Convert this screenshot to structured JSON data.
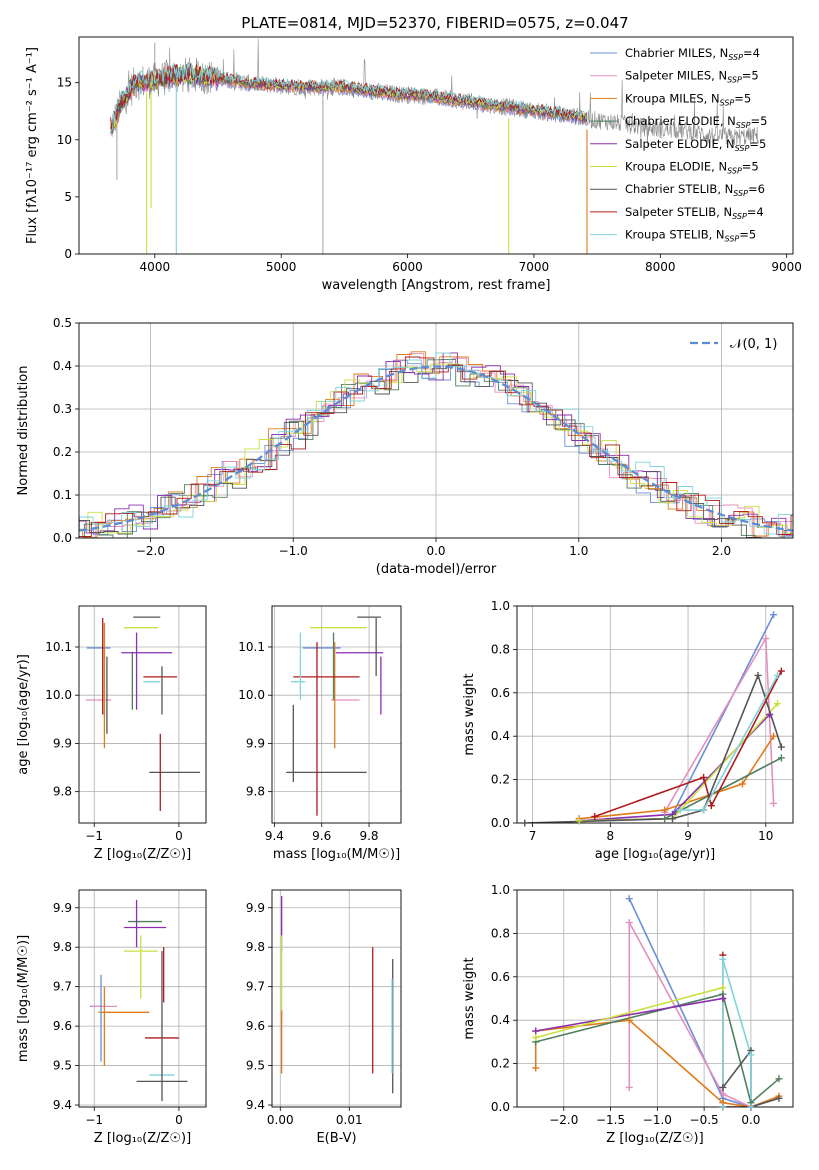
{
  "colors": {
    "chabrier_miles": "#6a8fd6",
    "salpeter_miles": "#e58fbf",
    "kroupa_miles": "#e07b1a",
    "chabrier_elodie": "#4e7f5e",
    "salpeter_elodie": "#8a2fb0",
    "kroupa_elodie": "#c8e040",
    "chabrier_stelib": "#555555",
    "salpeter_stelib": "#b01a1a",
    "kroupa_stelib": "#7fd4dc",
    "gaussian": "#5b8bd6",
    "grid": "#b0b0b0"
  },
  "chart_data": [
    {
      "id": "spectrum",
      "type": "line",
      "title": "PLATE=0814, MJD=52370, FIBERID=0575, z=0.047",
      "xlabel": "wavelength [Angstrom, rest frame]",
      "ylabel": "Flux [fλ10⁻¹⁷ erg cm⁻² s⁻¹ A⁻¹]",
      "xlim": [
        3400,
        9050
      ],
      "ylim": [
        0,
        19
      ],
      "xticks": [
        4000,
        5000,
        6000,
        7000,
        8000,
        9000
      ],
      "yticks": [
        0,
        5,
        10,
        15
      ],
      "legend_position": "top-right",
      "legend": [
        {
          "name": "Chabrier MILES, N",
          "sub": "SSP",
          "suffix": "=4",
          "color_key": "chabrier_miles"
        },
        {
          "name": "Salpeter MILES, N",
          "sub": "SSP",
          "suffix": "=5",
          "color_key": "salpeter_miles"
        },
        {
          "name": "Kroupa MILES, N",
          "sub": "SSP",
          "suffix": "=5",
          "color_key": "kroupa_miles"
        },
        {
          "name": "Chabrier ELODIE, N",
          "sub": "SSP",
          "suffix": "=5",
          "color_key": "chabrier_elodie"
        },
        {
          "name": "Salpeter ELODIE, N",
          "sub": "SSP",
          "suffix": "=5",
          "color_key": "salpeter_elodie"
        },
        {
          "name": "Kroupa ELODIE, N",
          "sub": "SSP",
          "suffix": "=5",
          "color_key": "kroupa_elodie"
        },
        {
          "name": "Chabrier STELIB, N",
          "sub": "SSP",
          "suffix": "=6",
          "color_key": "chabrier_stelib"
        },
        {
          "name": "Salpeter STELIB, N",
          "sub": "SSP",
          "suffix": "=4",
          "color_key": "salpeter_stelib"
        },
        {
          "name": "Kroupa STELIB, N",
          "sub": "SSP",
          "suffix": "=5",
          "color_key": "kroupa_stelib"
        }
      ],
      "continuum": {
        "x": [
          3650,
          3750,
          3850,
          4000,
          4150,
          4300,
          4500,
          4700,
          4900,
          5100,
          5300,
          5500,
          5700,
          5900,
          6100,
          6300,
          6500,
          6700,
          6900,
          7100,
          7300,
          7420
        ],
        "y": [
          11.0,
          13.5,
          15.0,
          15.2,
          15.6,
          15.7,
          15.4,
          15.0,
          14.8,
          14.7,
          14.6,
          14.6,
          14.3,
          14.0,
          13.9,
          13.6,
          13.3,
          13.0,
          12.7,
          12.4,
          12.1,
          11.9
        ]
      },
      "observed_tail": {
        "x": [
          7420,
          7600,
          7800,
          8000,
          8200,
          8400,
          8600,
          8780
        ],
        "y": [
          11.8,
          11.6,
          11.2,
          10.9,
          10.8,
          10.4,
          10.2,
          10.4
        ]
      },
      "model_dips": [
        {
          "x": 3935,
          "y": 0.0
        },
        {
          "x": 3970,
          "y": 4.0
        },
        {
          "x": 4170,
          "y": 0.0
        },
        {
          "x": 6800,
          "y": 0.0
        },
        {
          "x": 7420,
          "y": 0.0
        }
      ],
      "observed_spikes": [
        {
          "x": 5330,
          "y": 0.0
        },
        {
          "x": 3700,
          "y": 6.5
        },
        {
          "x": 4000,
          "y": 18.5
        }
      ]
    },
    {
      "id": "residuals",
      "type": "line",
      "title": "",
      "xlabel": "(data-model)/error",
      "ylabel": "Normed distribution",
      "xlim": [
        -2.5,
        2.5
      ],
      "ylim": [
        0,
        0.5
      ],
      "xticks": [
        -2,
        -1,
        0,
        1,
        2
      ],
      "yticks": [
        0.0,
        0.1,
        0.2,
        0.3,
        0.4,
        0.5
      ],
      "legend_position": "top-right",
      "gaussian_label": "𝒩(0, 1)",
      "bin_width": 0.1,
      "series_color_keys": [
        "chabrier_miles",
        "salpeter_miles",
        "kroupa_miles",
        "chabrier_elodie",
        "salpeter_elodie",
        "kroupa_elodie",
        "chabrier_stelib",
        "salpeter_stelib",
        "kroupa_stelib"
      ]
    },
    {
      "id": "age_vs_Z",
      "type": "scatter",
      "xlabel": "Z [log₁₀(Z/Z☉)]",
      "ylabel": "age  [log₁₀(age/yr)]",
      "xlim": [
        -1.18,
        0.32
      ],
      "ylim": [
        9.735,
        10.185
      ],
      "xticks": [
        -1,
        0
      ],
      "yticks": [
        9.8,
        9.9,
        10.0,
        10.1
      ],
      "points": [
        {
          "x": -0.95,
          "y": 10.098,
          "xerr": 0.14,
          "yerr": 0.0,
          "color_key": "chabrier_miles"
        },
        {
          "x": -0.95,
          "y": 9.99,
          "xerr": 0.15,
          "yerr": 0.0,
          "color_key": "salpeter_miles"
        },
        {
          "x": -0.88,
          "y": 10.02,
          "xerr": 0.0,
          "yerr": 0.13,
          "color_key": "kroupa_miles"
        },
        {
          "x": -0.55,
          "y": 10.03,
          "xerr": 0.0,
          "yerr": 0.06,
          "color_key": "chabrier_elodie"
        },
        {
          "x": -0.38,
          "y": 10.088,
          "xerr": 0.3,
          "yerr": 0.0,
          "color_key": "salpeter_elodie"
        },
        {
          "x": -0.45,
          "y": 10.14,
          "xerr": 0.2,
          "yerr": 0.0,
          "color_key": "kroupa_elodie"
        },
        {
          "x": -0.38,
          "y": 10.162,
          "xerr": 0.16,
          "yerr": 0.0,
          "color_key": "chabrier_stelib"
        },
        {
          "x": -0.22,
          "y": 10.038,
          "xerr": 0.2,
          "yerr": 0.0,
          "color_key": "salpeter_stelib"
        },
        {
          "x": -0.32,
          "y": 10.028,
          "xerr": 0.1,
          "yerr": 0.0,
          "color_key": "kroupa_stelib"
        },
        {
          "x": -0.05,
          "y": 9.84,
          "xerr": 0.3,
          "yerr": 0.0,
          "color_key": "chabrier_stelib"
        },
        {
          "x": -0.22,
          "y": 9.84,
          "xerr": 0.0,
          "yerr": 0.08,
          "color_key": "salpeter_stelib"
        },
        {
          "x": -0.9,
          "y": 10.06,
          "xerr": 0.0,
          "yerr": 0.1,
          "color_key": "salpeter_stelib"
        },
        {
          "x": -0.85,
          "y": 10.0,
          "xerr": 0.0,
          "yerr": 0.08,
          "color_key": "chabrier_stelib"
        },
        {
          "x": -0.5,
          "y": 10.05,
          "xerr": 0.0,
          "yerr": 0.08,
          "color_key": "salpeter_elodie"
        },
        {
          "x": -0.2,
          "y": 10.01,
          "xerr": 0.0,
          "yerr": 0.05,
          "color_key": "chabrier_stelib"
        }
      ]
    },
    {
      "id": "age_vs_mass",
      "type": "scatter",
      "xlabel": "mass [log₁₀(M/M☉)]",
      "ylabel": "",
      "xlim": [
        9.39,
        9.935
      ],
      "ylim": [
        9.735,
        10.185
      ],
      "xticks": [
        9.4,
        9.6,
        9.8
      ],
      "yticks": [
        9.8,
        9.9,
        10.0,
        10.1
      ],
      "points": [
        {
          "x": 9.6,
          "y": 10.098,
          "xerr": 0.08,
          "yerr": 0.0,
          "color_key": "chabrier_miles"
        },
        {
          "x": 9.7,
          "y": 9.99,
          "xerr": 0.06,
          "yerr": 0.0,
          "color_key": "salpeter_miles"
        },
        {
          "x": 9.655,
          "y": 10.0,
          "xerr": 0.0,
          "yerr": 0.11,
          "color_key": "kroupa_miles"
        },
        {
          "x": 9.65,
          "y": 10.06,
          "xerr": 0.0,
          "yerr": 0.07,
          "color_key": "chabrier_elodie"
        },
        {
          "x": 9.76,
          "y": 10.088,
          "xerr": 0.1,
          "yerr": 0.0,
          "color_key": "salpeter_elodie"
        },
        {
          "x": 9.67,
          "y": 10.14,
          "xerr": 0.12,
          "yerr": 0.0,
          "color_key": "kroupa_elodie"
        },
        {
          "x": 9.8,
          "y": 10.162,
          "xerr": 0.05,
          "yerr": 0.0,
          "color_key": "chabrier_stelib"
        },
        {
          "x": 9.62,
          "y": 10.038,
          "xerr": 0.14,
          "yerr": 0.0,
          "color_key": "salpeter_stelib"
        },
        {
          "x": 9.5,
          "y": 10.028,
          "xerr": 0.03,
          "yerr": 0.0,
          "color_key": "kroupa_stelib"
        },
        {
          "x": 9.62,
          "y": 9.84,
          "xerr": 0.17,
          "yerr": 0.0,
          "color_key": "chabrier_stelib"
        },
        {
          "x": 9.48,
          "y": 9.9,
          "xerr": 0.0,
          "yerr": 0.08,
          "color_key": "chabrier_stelib"
        },
        {
          "x": 9.58,
          "y": 9.93,
          "xerr": 0.0,
          "yerr": 0.18,
          "color_key": "salpeter_stelib"
        },
        {
          "x": 9.51,
          "y": 10.06,
          "xerr": 0.0,
          "yerr": 0.07,
          "color_key": "kroupa_stelib"
        },
        {
          "x": 9.85,
          "y": 10.02,
          "xerr": 0.0,
          "yerr": 0.06,
          "color_key": "salpeter_elodie"
        },
        {
          "x": 9.83,
          "y": 10.1,
          "xerr": 0.0,
          "yerr": 0.06,
          "color_key": "chabrier_stelib"
        }
      ]
    },
    {
      "id": "mass_weight_vs_age",
      "type": "line",
      "xlabel": "age  [log₁₀(age/yr)]",
      "ylabel": "mass weight",
      "xlim": [
        6.8,
        10.35
      ],
      "ylim": [
        0.0,
        1.0
      ],
      "xticks": [
        7,
        8,
        9,
        10
      ],
      "yticks": [
        0.0,
        0.2,
        0.4,
        0.6,
        0.8,
        1.0
      ],
      "series": [
        {
          "color_key": "chabrier_miles",
          "x": [
            8.8,
            10.1
          ],
          "y": [
            0.04,
            0.96
          ]
        },
        {
          "color_key": "salpeter_miles",
          "x": [
            8.7,
            10.0,
            10.1
          ],
          "y": [
            0.05,
            0.85,
            0.09
          ]
        },
        {
          "color_key": "kroupa_miles",
          "x": [
            7.6,
            8.7,
            9.7,
            10.1
          ],
          "y": [
            0.02,
            0.06,
            0.18,
            0.4
          ]
        },
        {
          "color_key": "chabrier_elodie",
          "x": [
            7.6,
            8.7,
            10.2
          ],
          "y": [
            0.01,
            0.02,
            0.3
          ]
        },
        {
          "color_key": "salpeter_elodie",
          "x": [
            7.6,
            8.8,
            10.05
          ],
          "y": [
            0.01,
            0.04,
            0.5
          ]
        },
        {
          "color_key": "kroupa_elodie",
          "x": [
            7.6,
            8.8,
            10.15
          ],
          "y": [
            0.01,
            0.02,
            0.55
          ]
        },
        {
          "color_key": "chabrier_stelib",
          "x": [
            6.9,
            8.8,
            9.2,
            9.9,
            10.2
          ],
          "y": [
            0.0,
            0.02,
            0.06,
            0.68,
            0.35
          ]
        },
        {
          "color_key": "salpeter_stelib",
          "x": [
            7.8,
            9.2,
            9.3,
            10.2
          ],
          "y": [
            0.03,
            0.21,
            0.08,
            0.7
          ]
        },
        {
          "color_key": "kroupa_stelib",
          "x": [
            8.9,
            9.2,
            10.15
          ],
          "y": [
            0.06,
            0.06,
            0.68
          ]
        }
      ]
    },
    {
      "id": "mass_vs_Z",
      "type": "scatter",
      "xlabel": "Z [log₁₀(Z/Z☉)]",
      "ylabel": "mass [log₁₀(M/M☉)]",
      "xlim": [
        -1.18,
        0.32
      ],
      "ylim": [
        9.395,
        9.945
      ],
      "xticks": [
        -1,
        0
      ],
      "yticks": [
        9.4,
        9.5,
        9.6,
        9.7,
        9.8,
        9.9
      ],
      "points": [
        {
          "x": -0.95,
          "y": 9.65,
          "xerr": 0.1,
          "yerr": 0.0,
          "color_key": "chabrier_miles"
        },
        {
          "x": -0.88,
          "y": 9.65,
          "xerr": 0.15,
          "yerr": 0.0,
          "color_key": "salpeter_miles"
        },
        {
          "x": -0.65,
          "y": 9.635,
          "xerr": 0.3,
          "yerr": 0.0,
          "color_key": "kroupa_miles"
        },
        {
          "x": -0.4,
          "y": 9.865,
          "xerr": 0.2,
          "yerr": 0.0,
          "color_key": "chabrier_elodie"
        },
        {
          "x": -0.4,
          "y": 9.85,
          "xerr": 0.25,
          "yerr": 0.0,
          "color_key": "salpeter_elodie"
        },
        {
          "x": -0.45,
          "y": 9.79,
          "xerr": 0.2,
          "yerr": 0.0,
          "color_key": "kroupa_elodie"
        },
        {
          "x": -0.2,
          "y": 9.46,
          "xerr": 0.3,
          "yerr": 0.0,
          "color_key": "chabrier_stelib"
        },
        {
          "x": -0.2,
          "y": 9.57,
          "xerr": 0.2,
          "yerr": 0.0,
          "color_key": "salpeter_stelib"
        },
        {
          "x": -0.2,
          "y": 9.476,
          "xerr": 0.15,
          "yerr": 0.0,
          "color_key": "kroupa_stelib"
        },
        {
          "x": -0.92,
          "y": 9.62,
          "xerr": 0.0,
          "yerr": 0.11,
          "color_key": "chabrier_miles"
        },
        {
          "x": -0.88,
          "y": 9.6,
          "xerr": 0.0,
          "yerr": 0.1,
          "color_key": "kroupa_miles"
        },
        {
          "x": -0.5,
          "y": 9.86,
          "xerr": 0.0,
          "yerr": 0.06,
          "color_key": "salpeter_elodie"
        },
        {
          "x": -0.45,
          "y": 9.75,
          "xerr": 0.0,
          "yerr": 0.08,
          "color_key": "kroupa_elodie"
        },
        {
          "x": -0.2,
          "y": 9.6,
          "xerr": 0.0,
          "yerr": 0.19,
          "color_key": "chabrier_stelib"
        },
        {
          "x": -0.18,
          "y": 9.73,
          "xerr": 0.0,
          "yerr": 0.07,
          "color_key": "salpeter_stelib"
        }
      ]
    },
    {
      "id": "mass_vs_ebv",
      "type": "scatter",
      "xlabel": "E(B-V)",
      "ylabel": "",
      "xlim": [
        -0.0012,
        0.0175
      ],
      "ylim": [
        9.395,
        9.945
      ],
      "xticks": [
        0.0,
        0.01
      ],
      "yticks": [
        9.4,
        9.5,
        9.6,
        9.7,
        9.8,
        9.9
      ],
      "points": [
        {
          "x": 0.0002,
          "y": 9.86,
          "xerr": 0.0,
          "yerr": 0.07,
          "color_key": "salpeter_elodie"
        },
        {
          "x": 0.0002,
          "y": 9.72,
          "xerr": 0.0,
          "yerr": 0.11,
          "color_key": "kroupa_elodie"
        },
        {
          "x": 0.0002,
          "y": 9.56,
          "xerr": 0.0,
          "yerr": 0.08,
          "color_key": "kroupa_miles"
        },
        {
          "x": 0.0134,
          "y": 9.64,
          "xerr": 0.0,
          "yerr": 0.16,
          "color_key": "salpeter_stelib"
        },
        {
          "x": 0.0163,
          "y": 9.6,
          "xerr": 0.0,
          "yerr": 0.17,
          "color_key": "chabrier_stelib"
        },
        {
          "x": 0.0162,
          "y": 9.6,
          "xerr": 0.0,
          "yerr": 0.12,
          "color_key": "kroupa_stelib"
        }
      ]
    },
    {
      "id": "mass_weight_vs_Z",
      "type": "line",
      "xlabel": "Z [log₁₀(Z/Z☉)]",
      "ylabel": "mass weight",
      "xlim": [
        -2.5,
        0.45
      ],
      "ylim": [
        0.0,
        1.0
      ],
      "xticks": [
        -2.0,
        -1.5,
        -1.0,
        -0.5,
        0.0
      ],
      "yticks": [
        0.0,
        0.2,
        0.4,
        0.6,
        0.8,
        1.0
      ],
      "series": [
        {
          "color_key": "chabrier_miles",
          "x": [
            -1.3,
            -0.3,
            0.0
          ],
          "y": [
            0.96,
            0.04,
            0.0
          ]
        },
        {
          "color_key": "salpeter_miles",
          "x": [
            -1.3,
            -1.3,
            -0.3,
            0.0,
            0.0
          ],
          "y": [
            0.09,
            0.85,
            0.06,
            0.0,
            0.0
          ]
        },
        {
          "color_key": "kroupa_miles",
          "x": [
            -2.3,
            -2.3,
            -1.3,
            -0.3,
            0.0,
            0.3
          ],
          "y": [
            0.18,
            0.35,
            0.4,
            0.02,
            0.0,
            0.05
          ]
        },
        {
          "color_key": "chabrier_elodie",
          "x": [
            -2.3,
            -0.3,
            0.0,
            0.3
          ],
          "y": [
            0.3,
            0.52,
            0.02,
            0.13
          ]
        },
        {
          "color_key": "salpeter_elodie",
          "x": [
            -2.3,
            -0.3,
            -0.3
          ],
          "y": [
            0.35,
            0.5,
            0.0
          ]
        },
        {
          "color_key": "kroupa_elodie",
          "x": [
            -2.3,
            -0.3,
            -0.3
          ],
          "y": [
            0.32,
            0.55,
            0.0
          ]
        },
        {
          "color_key": "chabrier_stelib",
          "x": [
            -0.3,
            -0.3,
            0.0,
            0.0,
            0.3
          ],
          "y": [
            0.0,
            0.09,
            0.26,
            0.0,
            0.04
          ]
        },
        {
          "color_key": "salpeter_stelib",
          "x": [
            -0.3,
            -0.3,
            0.0
          ],
          "y": [
            0.7,
            0.0,
            0.0
          ]
        },
        {
          "color_key": "kroupa_stelib",
          "x": [
            -0.3,
            -0.3,
            0.0,
            0.0
          ],
          "y": [
            0.0,
            0.68,
            0.24,
            0.0
          ]
        }
      ]
    }
  ]
}
